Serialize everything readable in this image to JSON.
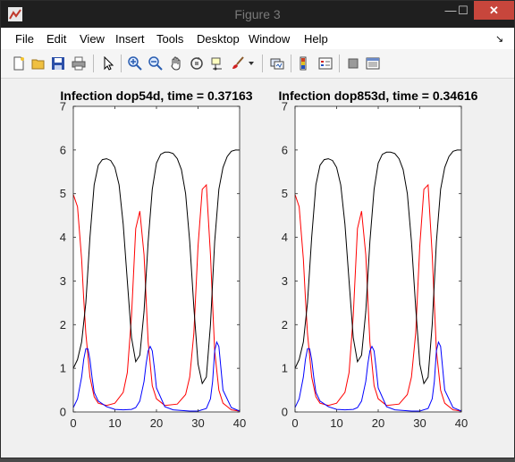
{
  "window": {
    "title": "Figure 3",
    "minimize_glyph": "—",
    "maximize_glyph": "☐",
    "close_glyph": "✕"
  },
  "menu": [
    "File",
    "Edit",
    "View",
    "Insert",
    "Tools",
    "Desktop",
    "Window",
    "Help"
  ],
  "toolbar_icons": [
    "new-figure-icon",
    "open-file-icon",
    "save-icon",
    "print-icon",
    "pointer-icon",
    "zoom-in-icon",
    "zoom-out-icon",
    "pan-icon",
    "rotate-3d-icon",
    "data-cursor-icon",
    "brush-icon",
    "brush-dropdown-icon",
    "link-plot-icon",
    "colorbar-icon",
    "legend-icon",
    "hide-plot-tools-icon",
    "show-plot-tools-icon"
  ],
  "colors": {
    "series1": "#ff0000",
    "series2": "#000000",
    "series3": "#0000ff"
  },
  "chart_data": [
    {
      "type": "line",
      "title": "Infection dop54d, time = 0.37163",
      "xlim": [
        0,
        40
      ],
      "ylim": [
        0,
        7
      ],
      "xticks": [
        0,
        10,
        20,
        30,
        40
      ],
      "yticks": [
        0,
        1,
        2,
        3,
        4,
        5,
        6,
        7
      ],
      "series": [
        {
          "color": "#ff0000",
          "x": [
            0,
            1,
            2,
            2.5,
            3,
            4,
            5,
            6,
            8,
            10,
            12,
            13,
            14,
            15,
            16,
            17,
            18,
            19,
            20,
            22,
            25,
            27,
            28,
            29,
            30,
            31,
            32,
            33,
            34,
            35,
            36,
            38,
            40
          ],
          "y": [
            4.98,
            4.7,
            3.5,
            2.6,
            1.8,
            0.8,
            0.35,
            0.2,
            0.15,
            0.2,
            0.45,
            0.9,
            2.2,
            4.2,
            4.6,
            3.6,
            1.6,
            0.6,
            0.3,
            0.15,
            0.18,
            0.4,
            0.8,
            1.8,
            3.8,
            5.1,
            5.2,
            3.6,
            1.4,
            0.5,
            0.2,
            0.05,
            0.02
          ]
        },
        {
          "color": "#000000",
          "x": [
            0,
            1,
            2,
            3,
            4,
            5,
            6,
            7,
            8,
            9,
            10,
            11,
            12,
            13,
            14,
            15,
            16,
            17,
            18,
            19,
            20,
            21,
            22,
            23,
            24,
            25,
            26,
            27,
            28,
            29,
            30,
            31,
            32,
            33,
            34,
            35,
            36,
            37,
            38,
            39,
            40
          ],
          "y": [
            1.0,
            1.2,
            1.6,
            2.5,
            4.0,
            5.2,
            5.65,
            5.78,
            5.8,
            5.76,
            5.6,
            5.2,
            4.3,
            3.0,
            1.7,
            1.15,
            1.3,
            2.3,
            3.9,
            5.1,
            5.7,
            5.9,
            5.95,
            5.95,
            5.92,
            5.8,
            5.55,
            5.0,
            3.9,
            2.4,
            1.1,
            0.65,
            0.8,
            2.0,
            3.9,
            5.1,
            5.6,
            5.85,
            5.97,
            6.0,
            6.0
          ]
        },
        {
          "color": "#0000ff",
          "x": [
            0,
            1,
            2,
            2.5,
            3,
            3.5,
            4,
            4.5,
            5,
            6,
            8,
            10,
            12,
            14,
            15,
            16,
            17,
            17.5,
            18,
            18.5,
            19,
            19.5,
            20,
            22,
            24,
            28,
            30,
            32,
            33,
            33.5,
            34,
            34.5,
            35,
            35.5,
            36,
            38,
            40
          ],
          "y": [
            0.1,
            0.3,
            0.8,
            1.2,
            1.45,
            1.45,
            1.2,
            0.8,
            0.45,
            0.25,
            0.12,
            0.06,
            0.05,
            0.06,
            0.1,
            0.25,
            0.7,
            1.1,
            1.4,
            1.5,
            1.4,
            1.0,
            0.55,
            0.12,
            0.05,
            0.02,
            0.02,
            0.08,
            0.3,
            0.7,
            1.4,
            1.6,
            1.5,
            1.0,
            0.5,
            0.1,
            0.02
          ]
        }
      ]
    },
    {
      "type": "line",
      "title": "Infection dop853d, time = 0.34616",
      "xlim": [
        0,
        40
      ],
      "ylim": [
        0,
        7
      ],
      "xticks": [
        0,
        10,
        20,
        30,
        40
      ],
      "yticks": [
        0,
        1,
        2,
        3,
        4,
        5,
        6,
        7
      ],
      "series": [
        {
          "color": "#ff0000",
          "x": [
            0,
            1,
            2,
            2.5,
            3,
            4,
            5,
            6,
            8,
            10,
            12,
            13,
            14,
            15,
            16,
            17,
            18,
            19,
            20,
            22,
            25,
            27,
            28,
            29,
            30,
            31,
            32,
            33,
            34,
            35,
            36,
            38,
            40
          ],
          "y": [
            4.98,
            4.7,
            3.5,
            2.6,
            1.8,
            0.8,
            0.35,
            0.2,
            0.15,
            0.2,
            0.45,
            0.9,
            2.2,
            4.2,
            4.6,
            3.6,
            1.6,
            0.6,
            0.3,
            0.15,
            0.18,
            0.4,
            0.8,
            1.8,
            3.8,
            5.1,
            5.2,
            3.6,
            1.4,
            0.5,
            0.2,
            0.05,
            0.02
          ]
        },
        {
          "color": "#000000",
          "x": [
            0,
            1,
            2,
            3,
            4,
            5,
            6,
            7,
            8,
            9,
            10,
            11,
            12,
            13,
            14,
            15,
            16,
            17,
            18,
            19,
            20,
            21,
            22,
            23,
            24,
            25,
            26,
            27,
            28,
            29,
            30,
            31,
            32,
            33,
            34,
            35,
            36,
            37,
            38,
            39,
            40
          ],
          "y": [
            1.0,
            1.2,
            1.6,
            2.5,
            4.0,
            5.2,
            5.65,
            5.78,
            5.8,
            5.76,
            5.6,
            5.2,
            4.3,
            3.0,
            1.7,
            1.15,
            1.3,
            2.3,
            3.9,
            5.1,
            5.7,
            5.9,
            5.95,
            5.95,
            5.92,
            5.8,
            5.55,
            5.0,
            3.9,
            2.4,
            1.1,
            0.65,
            0.8,
            2.0,
            3.9,
            5.1,
            5.6,
            5.85,
            5.97,
            6.0,
            6.0
          ]
        },
        {
          "color": "#0000ff",
          "x": [
            0,
            1,
            2,
            2.5,
            3,
            3.5,
            4,
            4.5,
            5,
            6,
            8,
            10,
            12,
            14,
            15,
            16,
            17,
            17.5,
            18,
            18.5,
            19,
            19.5,
            20,
            22,
            24,
            28,
            30,
            32,
            33,
            33.5,
            34,
            34.5,
            35,
            35.5,
            36,
            38,
            40
          ],
          "y": [
            0.1,
            0.3,
            0.8,
            1.2,
            1.45,
            1.45,
            1.2,
            0.8,
            0.45,
            0.25,
            0.12,
            0.06,
            0.05,
            0.06,
            0.1,
            0.25,
            0.7,
            1.1,
            1.4,
            1.5,
            1.4,
            1.0,
            0.55,
            0.12,
            0.05,
            0.02,
            0.02,
            0.08,
            0.3,
            0.7,
            1.4,
            1.6,
            1.5,
            1.0,
            0.5,
            0.1,
            0.02
          ]
        }
      ]
    }
  ]
}
